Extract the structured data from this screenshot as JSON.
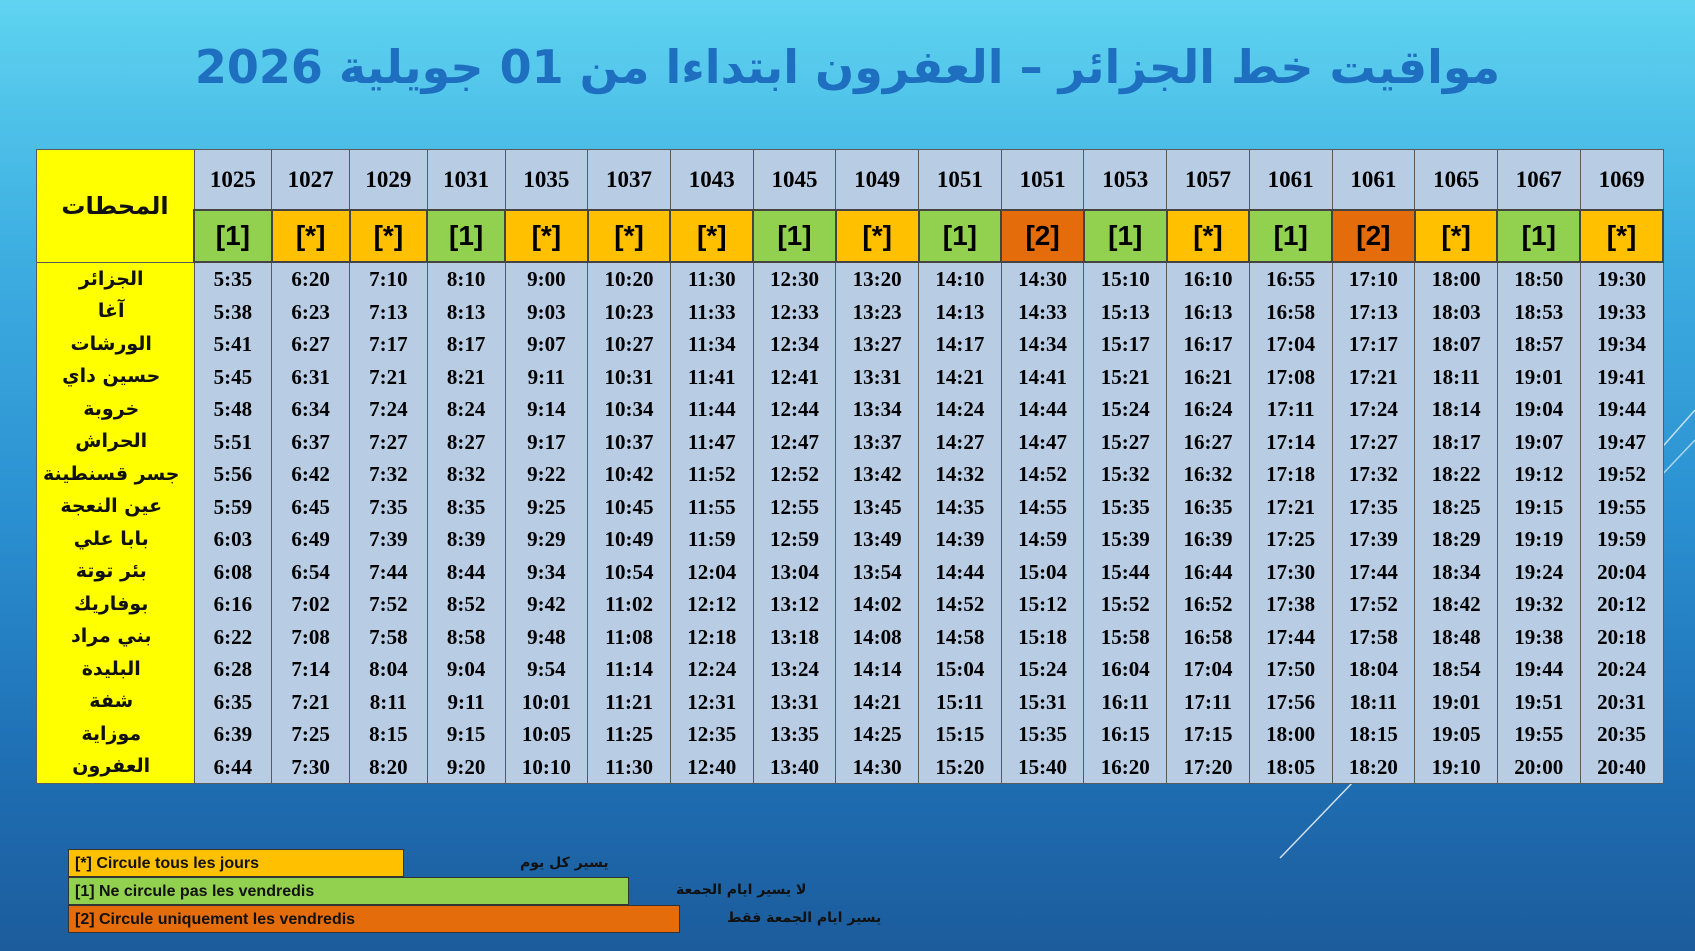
{
  "title": "مواقيت خط الجزائر – العفرون  ابتداءا من 01 جويلية 2026",
  "stations_header": "المحطات",
  "stations": [
    "الجزائر",
    "آغا",
    "الورشات",
    "حسين داي",
    "خروبة",
    "الحراش",
    "جسر قسنطينة",
    "عين النعجة",
    "بابا علي",
    "بئر توتة",
    "بوفاريك",
    "بني مراد",
    "البليدة",
    "شفة",
    "موزاية",
    "العفرون"
  ],
  "trains": [
    {
      "number": "1025",
      "code": "[1]",
      "type": "one",
      "times": [
        "5:35",
        "5:38",
        "5:41",
        "5:45",
        "5:48",
        "5:51",
        "5:56",
        "5:59",
        "6:03",
        "6:08",
        "6:16",
        "6:22",
        "6:28",
        "6:35",
        "6:39",
        "6:44"
      ]
    },
    {
      "number": "1027",
      "code": "[*]",
      "type": "star",
      "times": [
        "6:20",
        "6:23",
        "6:27",
        "6:31",
        "6:34",
        "6:37",
        "6:42",
        "6:45",
        "6:49",
        "6:54",
        "7:02",
        "7:08",
        "7:14",
        "7:21",
        "7:25",
        "7:30"
      ]
    },
    {
      "number": "1029",
      "code": "[*]",
      "type": "star",
      "times": [
        "7:10",
        "7:13",
        "7:17",
        "7:21",
        "7:24",
        "7:27",
        "7:32",
        "7:35",
        "7:39",
        "7:44",
        "7:52",
        "7:58",
        "8:04",
        "8:11",
        "8:15",
        "8:20"
      ]
    },
    {
      "number": "1031",
      "code": "[1]",
      "type": "one",
      "times": [
        "8:10",
        "8:13",
        "8:17",
        "8:21",
        "8:24",
        "8:27",
        "8:32",
        "8:35",
        "8:39",
        "8:44",
        "8:52",
        "8:58",
        "9:04",
        "9:11",
        "9:15",
        "9:20"
      ]
    },
    {
      "number": "1035",
      "code": "[*]",
      "type": "star",
      "times": [
        "9:00",
        "9:03",
        "9:07",
        "9:11",
        "9:14",
        "9:17",
        "9:22",
        "9:25",
        "9:29",
        "9:34",
        "9:42",
        "9:48",
        "9:54",
        "10:01",
        "10:05",
        "10:10"
      ]
    },
    {
      "number": "1037",
      "code": "[*]",
      "type": "star",
      "times": [
        "10:20",
        "10:23",
        "10:27",
        "10:31",
        "10:34",
        "10:37",
        "10:42",
        "10:45",
        "10:49",
        "10:54",
        "11:02",
        "11:08",
        "11:14",
        "11:21",
        "11:25",
        "11:30"
      ]
    },
    {
      "number": "1043",
      "code": "[*]",
      "type": "star",
      "times": [
        "11:30",
        "11:33",
        "11:34",
        "11:41",
        "11:44",
        "11:47",
        "11:52",
        "11:55",
        "11:59",
        "12:04",
        "12:12",
        "12:18",
        "12:24",
        "12:31",
        "12:35",
        "12:40"
      ]
    },
    {
      "number": "1045",
      "code": "[1]",
      "type": "one",
      "times": [
        "12:30",
        "12:33",
        "12:34",
        "12:41",
        "12:44",
        "12:47",
        "12:52",
        "12:55",
        "12:59",
        "13:04",
        "13:12",
        "13:18",
        "13:24",
        "13:31",
        "13:35",
        "13:40"
      ]
    },
    {
      "number": "1049",
      "code": "[*]",
      "type": "star",
      "times": [
        "13:20",
        "13:23",
        "13:27",
        "13:31",
        "13:34",
        "13:37",
        "13:42",
        "13:45",
        "13:49",
        "13:54",
        "14:02",
        "14:08",
        "14:14",
        "14:21",
        "14:25",
        "14:30"
      ]
    },
    {
      "number": "1051",
      "code": "[1]",
      "type": "one",
      "times": [
        "14:10",
        "14:13",
        "14:17",
        "14:21",
        "14:24",
        "14:27",
        "14:32",
        "14:35",
        "14:39",
        "14:44",
        "14:52",
        "14:58",
        "15:04",
        "15:11",
        "15:15",
        "15:20"
      ]
    },
    {
      "number": "1051",
      "code": "[2]",
      "type": "two",
      "times": [
        "14:30",
        "14:33",
        "14:34",
        "14:41",
        "14:44",
        "14:47",
        "14:52",
        "14:55",
        "14:59",
        "15:04",
        "15:12",
        "15:18",
        "15:24",
        "15:31",
        "15:35",
        "15:40"
      ]
    },
    {
      "number": "1053",
      "code": "[1]",
      "type": "one",
      "times": [
        "15:10",
        "15:13",
        "15:17",
        "15:21",
        "15:24",
        "15:27",
        "15:32",
        "15:35",
        "15:39",
        "15:44",
        "15:52",
        "15:58",
        "16:04",
        "16:11",
        "16:15",
        "16:20"
      ]
    },
    {
      "number": "1057",
      "code": "[*]",
      "type": "star",
      "times": [
        "16:10",
        "16:13",
        "16:17",
        "16:21",
        "16:24",
        "16:27",
        "16:32",
        "16:35",
        "16:39",
        "16:44",
        "16:52",
        "16:58",
        "17:04",
        "17:11",
        "17:15",
        "17:20"
      ]
    },
    {
      "number": "1061",
      "code": "[1]",
      "type": "one",
      "times": [
        "16:55",
        "16:58",
        "17:04",
        "17:08",
        "17:11",
        "17:14",
        "17:18",
        "17:21",
        "17:25",
        "17:30",
        "17:38",
        "17:44",
        "17:50",
        "17:56",
        "18:00",
        "18:05"
      ]
    },
    {
      "number": "1061",
      "code": "[2]",
      "type": "two",
      "times": [
        "17:10",
        "17:13",
        "17:17",
        "17:21",
        "17:24",
        "17:27",
        "17:32",
        "17:35",
        "17:39",
        "17:44",
        "17:52",
        "17:58",
        "18:04",
        "18:11",
        "18:15",
        "18:20"
      ]
    },
    {
      "number": "1065",
      "code": "[*]",
      "type": "star",
      "times": [
        "18:00",
        "18:03",
        "18:07",
        "18:11",
        "18:14",
        "18:17",
        "18:22",
        "18:25",
        "18:29",
        "18:34",
        "18:42",
        "18:48",
        "18:54",
        "19:01",
        "19:05",
        "19:10"
      ]
    },
    {
      "number": "1067",
      "code": "[1]",
      "type": "one",
      "times": [
        "18:50",
        "18:53",
        "18:57",
        "19:01",
        "19:04",
        "19:07",
        "19:12",
        "19:15",
        "19:19",
        "19:24",
        "19:32",
        "19:38",
        "19:44",
        "19:51",
        "19:55",
        "20:00"
      ]
    },
    {
      "number": "1069",
      "code": "[*]",
      "type": "star",
      "times": [
        "19:30",
        "19:33",
        "19:34",
        "19:41",
        "19:44",
        "19:47",
        "19:52",
        "19:55",
        "19:59",
        "20:04",
        "20:12",
        "20:18",
        "20:24",
        "20:31",
        "20:35",
        "20:40"
      ]
    }
  ],
  "legend": [
    {
      "type": "star",
      "label": "[*]  Circule tous les jours",
      "arabic": "يسير كل يوم"
    },
    {
      "type": "one",
      "label": "[1]  Ne circule pas les vendredis",
      "arabic": "لا يسير ايام الجمعة"
    },
    {
      "type": "two",
      "label": "[2] Circule uniquement  les vendredis",
      "arabic": "يسير ايام الجمعة  فقط"
    }
  ],
  "colors": {
    "star": "#ffc000",
    "one": "#92d050",
    "two": "#e46c0a",
    "stations_bg": "#ffff00",
    "cell_bg": "#b8cce4",
    "title": "#1f6fc0"
  }
}
